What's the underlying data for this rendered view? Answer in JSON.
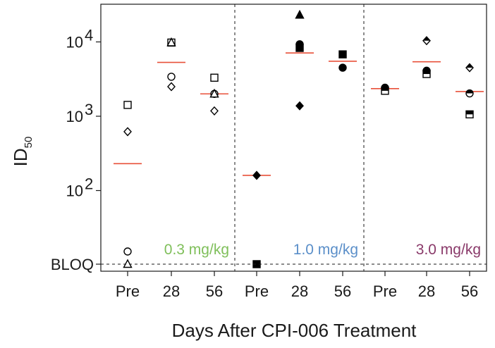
{
  "chart_data": {
    "type": "scatter",
    "xlabel": "Days After CPI-006 Treatment",
    "ylabel": "ID",
    "ylabel_sub": "50",
    "y_scale": "log",
    "y_ticks": [
      {
        "label": "10",
        "exp": "2",
        "value": 100
      },
      {
        "label": "10",
        "exp": "3",
        "value": 1000
      },
      {
        "label": "10",
        "exp": "4",
        "value": 10000
      }
    ],
    "bloq_label": "BLOQ",
    "grid": false,
    "colors": {
      "mean_line": "#e8503a",
      "axis": "#1a1a1a"
    },
    "panels": [
      {
        "dose": "0.3 mg/kg",
        "dose_color": "#7fbf5a",
        "timepoints": [
          {
            "label": "Pre",
            "mean": 230,
            "points": [
              {
                "marker": "open-square",
                "value": 1420
              },
              {
                "marker": "open-diamond",
                "value": 620
              },
              {
                "marker": "open-circle",
                "value": "BLOQ+"
              },
              {
                "marker": "open-triangle",
                "value": "BLOQ"
              }
            ]
          },
          {
            "label": "28",
            "mean": 5300,
            "points": [
              {
                "marker": "open-square",
                "value": 9800
              },
              {
                "marker": "open-triangle",
                "value": 9800
              },
              {
                "marker": "open-circle",
                "value": 3400
              },
              {
                "marker": "open-diamond",
                "value": 2500
              }
            ]
          },
          {
            "label": "56",
            "mean": 2000,
            "points": [
              {
                "marker": "open-square",
                "value": 3300
              },
              {
                "marker": "open-circle",
                "value": 2000
              },
              {
                "marker": "open-triangle",
                "value": 2000
              },
              {
                "marker": "open-diamond",
                "value": 1180
              }
            ]
          }
        ]
      },
      {
        "dose": "1.0 mg/kg",
        "dose_color": "#5b8fc9",
        "timepoints": [
          {
            "label": "Pre",
            "mean": 160,
            "points": [
              {
                "marker": "filled-diamond",
                "value": 160
              },
              {
                "marker": "filled-square",
                "value": "BLOQ"
              }
            ]
          },
          {
            "label": "28",
            "mean": 7100,
            "points": [
              {
                "marker": "filled-triangle",
                "value": 23000
              },
              {
                "marker": "filled-circle",
                "value": 9300
              },
              {
                "marker": "filled-square",
                "value": 8300
              },
              {
                "marker": "filled-diamond",
                "value": 1380
              }
            ]
          },
          {
            "label": "56",
            "mean": 5500,
            "points": [
              {
                "marker": "filled-square",
                "value": 6800
              },
              {
                "marker": "filled-circle",
                "value": 4500
              }
            ]
          }
        ]
      },
      {
        "dose": "3.0 mg/kg",
        "dose_color": "#8a3a6a",
        "timepoints": [
          {
            "label": "Pre",
            "mean": 2350,
            "points": [
              {
                "marker": "half-circle",
                "value": 2420
              },
              {
                "marker": "half-square",
                "value": 2200
              }
            ]
          },
          {
            "label": "28",
            "mean": 5400,
            "points": [
              {
                "marker": "half-diamond",
                "value": 10400
              },
              {
                "marker": "half-circle",
                "value": 4100
              },
              {
                "marker": "half-square",
                "value": 3700
              }
            ]
          },
          {
            "label": "56",
            "mean": 2150,
            "points": [
              {
                "marker": "half-diamond",
                "value": 4500
              },
              {
                "marker": "half-circle",
                "value": 2030
              },
              {
                "marker": "half-square",
                "value": 1060
              }
            ]
          }
        ]
      }
    ]
  }
}
